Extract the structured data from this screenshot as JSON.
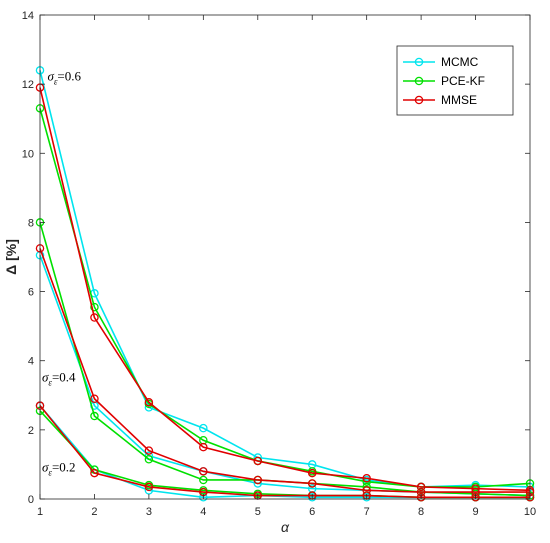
{
  "chart_data": {
    "type": "line",
    "title": "",
    "xlabel": "α",
    "ylabel": "Δ [%]",
    "xlim": [
      1,
      10
    ],
    "ylim": [
      0,
      14
    ],
    "xticks": [
      1,
      2,
      3,
      4,
      5,
      6,
      7,
      8,
      9,
      10
    ],
    "yticks": [
      0,
      2,
      4,
      6,
      8,
      10,
      12,
      14
    ],
    "grid": false,
    "legend_position": "top-right",
    "legend": [
      {
        "name": "MCMC",
        "color": "#00e5ee"
      },
      {
        "name": "PCE-KF",
        "color": "#00e000"
      },
      {
        "name": "MMSE",
        "color": "#e00000"
      }
    ],
    "x": [
      1,
      2,
      3,
      4,
      5,
      6,
      7,
      8,
      9,
      10
    ],
    "series": [
      {
        "name": "MCMC",
        "group": "σε=0.6",
        "color": "#00e5ee",
        "values": [
          12.4,
          5.95,
          2.65,
          2.05,
          1.2,
          1.0,
          0.55,
          0.35,
          0.4,
          0.35
        ]
      },
      {
        "name": "PCE-KF",
        "group": "σε=0.6",
        "color": "#00e000",
        "values": [
          11.3,
          5.55,
          2.75,
          1.7,
          1.1,
          0.8,
          0.5,
          0.35,
          0.35,
          0.45
        ]
      },
      {
        "name": "MMSE",
        "group": "σε=0.6",
        "color": "#e00000",
        "values": [
          11.9,
          5.25,
          2.8,
          1.5,
          1.1,
          0.75,
          0.6,
          0.35,
          0.3,
          0.25
        ]
      },
      {
        "name": "MCMC",
        "group": "σε=0.4",
        "color": "#00e5ee",
        "values": [
          7.05,
          2.7,
          1.25,
          0.8,
          0.45,
          0.3,
          0.25,
          0.2,
          0.15,
          0.1
        ]
      },
      {
        "name": "PCE-KF",
        "group": "σε=0.4",
        "color": "#00e000",
        "values": [
          8.0,
          2.4,
          1.15,
          0.55,
          0.55,
          0.45,
          0.35,
          0.2,
          0.15,
          0.1
        ]
      },
      {
        "name": "MMSE",
        "group": "σε=0.4",
        "color": "#e00000",
        "values": [
          7.25,
          2.9,
          1.4,
          0.8,
          0.55,
          0.45,
          0.25,
          0.2,
          0.2,
          0.2
        ]
      },
      {
        "name": "MCMC",
        "group": "σε=0.2",
        "color": "#00e5ee",
        "values": [
          2.7,
          0.85,
          0.25,
          0.05,
          0.1,
          0.05,
          0.05,
          0.05,
          0.05,
          0.05
        ]
      },
      {
        "name": "PCE-KF",
        "group": "σε=0.2",
        "color": "#00e000",
        "values": [
          2.55,
          0.85,
          0.4,
          0.25,
          0.15,
          0.1,
          0.1,
          0.05,
          0.05,
          0.05
        ]
      },
      {
        "name": "MMSE",
        "group": "σε=0.2",
        "color": "#e00000",
        "values": [
          2.7,
          0.75,
          0.35,
          0.2,
          0.1,
          0.1,
          0.1,
          0.05,
          0.05,
          0.05
        ]
      }
    ],
    "annotations": [
      {
        "symbol": "σ",
        "subscript": "ε",
        "text": "=0.6",
        "x": 1.1,
        "y": 12.1
      },
      {
        "symbol": "σ",
        "subscript": "ε",
        "text": "=0.4",
        "x": 1.0,
        "y": 3.4
      },
      {
        "symbol": "σ",
        "subscript": "ε",
        "text": "=0.2",
        "x": 1.0,
        "y": 0.8
      }
    ]
  }
}
